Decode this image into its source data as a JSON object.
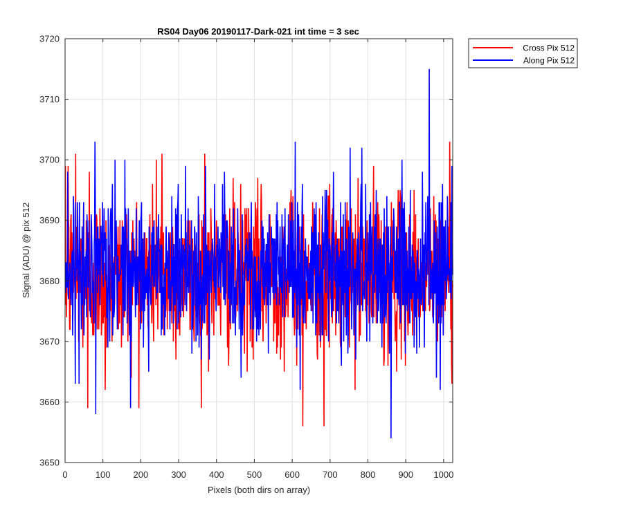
{
  "chart_data": {
    "type": "line",
    "title": "RS04 Day06 20190117-Dark-021 int time = 3 sec",
    "xlabel": "Pixels (both dirs on array)",
    "ylabel": "Signal (ADU) @ pix 512",
    "xlim": [
      0,
      1024
    ],
    "ylim": [
      3650,
      3720
    ],
    "xticks": [
      0,
      100,
      200,
      300,
      400,
      500,
      600,
      700,
      800,
      900,
      1000
    ],
    "yticks": [
      3650,
      3660,
      3670,
      3680,
      3690,
      3700,
      3710,
      3720
    ],
    "grid": true,
    "legend": "outside-top-right",
    "n_points": 1024,
    "series": [
      {
        "name": "Cross Pix 512",
        "color": "#ff0000",
        "mean": 3681,
        "std": 6.5,
        "min": 3656,
        "max": 3703,
        "extremes": [
          [
            7,
            3699
          ],
          [
            27,
            3701
          ],
          [
            48,
            3693
          ],
          [
            59,
            3659
          ],
          [
            63,
            3698
          ],
          [
            105,
            3662
          ],
          [
            240,
            3700
          ],
          [
            255,
            3701
          ],
          [
            368,
            3701
          ],
          [
            627,
            3656
          ],
          [
            683,
            3656
          ],
          [
            1015,
            3703
          ],
          [
            1020,
            3666
          ]
        ]
      },
      {
        "name": "Along Pix 512",
        "color": "#0000ff",
        "mean": 3682,
        "std": 6.2,
        "min": 3654,
        "max": 3715,
        "extremes": [
          [
            6,
            3698
          ],
          [
            80,
            3658
          ],
          [
            157,
            3700
          ],
          [
            317,
            3699
          ],
          [
            370,
            3699
          ],
          [
            607,
            3703
          ],
          [
            620,
            3662
          ],
          [
            752,
            3702
          ],
          [
            783,
            3702
          ],
          [
            860,
            3654
          ],
          [
            961,
            3715
          ],
          [
            980,
            3664
          ],
          [
            990,
            3662
          ]
        ]
      }
    ]
  }
}
